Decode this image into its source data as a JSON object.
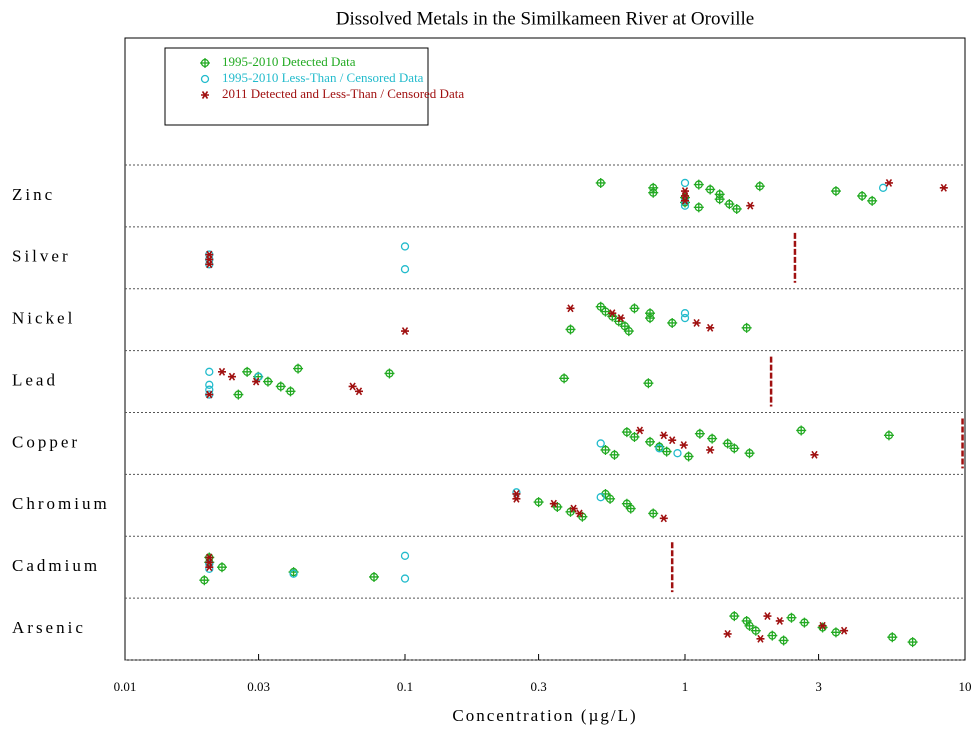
{
  "chart_data": {
    "type": "scatter",
    "title": "Dissolved Metals in the Similkameen River at Oroville",
    "xlabel": "Concentration (µg/L)",
    "xlog": true,
    "xlim": [
      0.01,
      10
    ],
    "xticks": [
      0.01,
      0.03,
      0.1,
      0.3,
      1,
      3,
      10
    ],
    "categories": [
      "Zinc",
      "Silver",
      "Nickel",
      "Lead",
      "Copper",
      "Chromium",
      "Cadmium",
      "Arsenic"
    ],
    "series": [
      {
        "name": "1995-2010 Detected Data",
        "color": "#22aa22",
        "marker": "cross-circle",
        "x": [
          0.5,
          0.77,
          0.77,
          1.0,
          1.0,
          1.12,
          1.12,
          1.23,
          1.33,
          1.33,
          1.44,
          1.53,
          1.85,
          3.46,
          4.29,
          4.66,
          0.39,
          0.5,
          0.52,
          0.55,
          0.58,
          0.61,
          0.63,
          0.66,
          0.75,
          0.75,
          0.9,
          1.66,
          0.0254,
          0.0273,
          0.0299,
          0.0324,
          0.036,
          0.039,
          0.0415,
          0.088,
          0.37,
          0.74,
          0.52,
          0.56,
          0.62,
          0.66,
          0.75,
          0.81,
          0.86,
          1.03,
          1.13,
          1.25,
          1.42,
          1.5,
          1.7,
          2.6,
          5.35,
          0.3,
          0.35,
          0.39,
          0.43,
          0.52,
          0.54,
          0.62,
          0.64,
          0.77,
          0.0192,
          0.02,
          0.02,
          0.0222,
          0.04,
          0.0775,
          1.5,
          1.66,
          1.7,
          1.79,
          2.05,
          2.25,
          2.4,
          2.67,
          3.1,
          3.46,
          5.5,
          6.5
        ],
        "y": [
          "Zinc",
          "Zinc",
          "Zinc",
          "Zinc",
          "Zinc",
          "Zinc",
          "Zinc",
          "Zinc",
          "Zinc",
          "Zinc",
          "Zinc",
          "Zinc",
          "Zinc",
          "Zinc",
          "Zinc",
          "Zinc",
          "Nickel",
          "Nickel",
          "Nickel",
          "Nickel",
          "Nickel",
          "Nickel",
          "Nickel",
          "Nickel",
          "Nickel",
          "Nickel",
          "Nickel",
          "Nickel",
          "Lead",
          "Lead",
          "Lead",
          "Lead",
          "Lead",
          "Lead",
          "Lead",
          "Lead",
          "Lead",
          "Lead",
          "Copper",
          "Copper",
          "Copper",
          "Copper",
          "Copper",
          "Copper",
          "Copper",
          "Copper",
          "Copper",
          "Copper",
          "Copper",
          "Copper",
          "Copper",
          "Copper",
          "Copper",
          "Chromium",
          "Chromium",
          "Chromium",
          "Chromium",
          "Chromium",
          "Chromium",
          "Chromium",
          "Chromium",
          "Chromium",
          "Cadmium",
          "Cadmium",
          "Cadmium",
          "Cadmium",
          "Cadmium",
          "Cadmium",
          "Arsenic",
          "Arsenic",
          "Arsenic",
          "Arsenic",
          "Arsenic",
          "Arsenic",
          "Arsenic",
          "Arsenic",
          "Arsenic",
          "Arsenic",
          "Arsenic",
          "Arsenic"
        ]
      },
      {
        "name": "1995-2010 Less-Than / Censored Data",
        "color": "#22bbcc",
        "marker": "circle",
        "x": [
          1.0,
          1.0,
          1.0,
          5.1,
          0.02,
          0.02,
          0.02,
          0.1,
          0.1,
          1.0,
          1.0,
          0.02,
          0.02,
          0.02,
          0.02,
          0.03,
          0.5,
          0.81,
          0.94,
          0.25,
          0.5,
          0.02,
          0.02,
          0.04,
          0.1,
          0.1
        ],
        "y": [
          "Zinc",
          "Zinc",
          "Zinc",
          "Zinc",
          "Silver",
          "Silver",
          "Silver",
          "Silver",
          "Silver",
          "Nickel",
          "Nickel",
          "Lead",
          "Lead",
          "Lead",
          "Lead",
          "Lead",
          "Copper",
          "Copper",
          "Copper",
          "Chromium",
          "Chromium",
          "Cadmium",
          "Cadmium",
          "Cadmium",
          "Cadmium",
          "Cadmium"
        ]
      },
      {
        "name": "2011 Detected and Less-Than / Censored Data",
        "color": "#a01010",
        "marker": "star",
        "x": [
          1.0,
          1.0,
          1.0,
          1.71,
          5.35,
          8.4,
          0.02,
          0.02,
          0.02,
          0.1,
          0.39,
          0.55,
          0.59,
          1.1,
          1.23,
          0.02,
          0.0222,
          0.0241,
          0.0294,
          0.065,
          0.0685,
          0.69,
          0.84,
          0.9,
          0.99,
          1.23,
          2.9,
          0.25,
          0.25,
          0.34,
          0.4,
          0.42,
          0.84,
          0.02,
          0.02,
          0.02,
          1.42,
          1.86,
          1.97,
          2.18,
          3.1,
          3.7
        ],
        "y": [
          "Zinc",
          "Zinc",
          "Zinc",
          "Zinc",
          "Zinc",
          "Zinc",
          "Silver",
          "Silver",
          "Silver",
          "Nickel",
          "Nickel",
          "Nickel",
          "Nickel",
          "Nickel",
          "Nickel",
          "Lead",
          "Lead",
          "Lead",
          "Lead",
          "Lead",
          "Lead",
          "Copper",
          "Copper",
          "Copper",
          "Copper",
          "Copper",
          "Copper",
          "Chromium",
          "Chromium",
          "Chromium",
          "Chromium",
          "Chromium",
          "Chromium",
          "Cadmium",
          "Cadmium",
          "Cadmium",
          "Arsenic",
          "Arsenic",
          "Arsenic",
          "Arsenic",
          "Arsenic",
          "Arsenic"
        ]
      }
    ],
    "reference_lines": {
      "color": "#a01010",
      "categories": [
        "Silver",
        "Lead",
        "Copper",
        "Cadmium"
      ],
      "x": [
        2.47,
        2.03,
        9.8,
        0.9
      ]
    }
  }
}
